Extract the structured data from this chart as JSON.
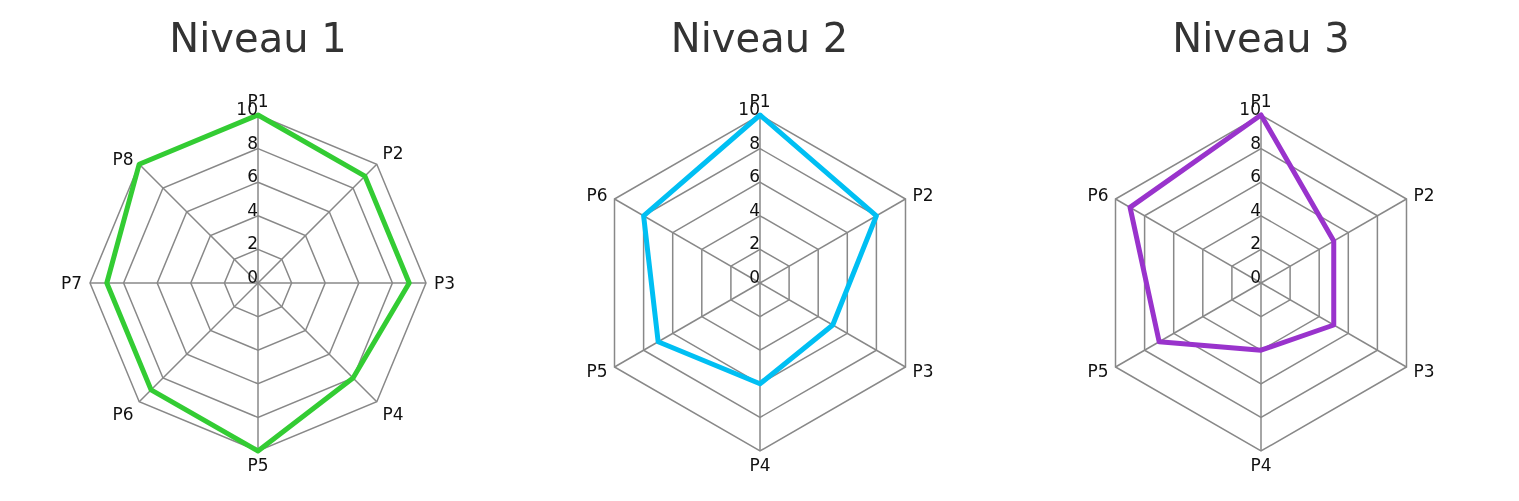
{
  "chart_data": [
    {
      "type": "radar",
      "title": "Niveau 1",
      "categories": [
        "P1",
        "P2",
        "P3",
        "P4",
        "P5",
        "P6",
        "P7",
        "P8"
      ],
      "series": [
        {
          "color": "#33cc33",
          "values": [
            10,
            9,
            9,
            8,
            10,
            9,
            9,
            10
          ]
        }
      ],
      "ylim": [
        0,
        10
      ],
      "yticks": [
        0,
        2,
        4,
        6,
        8,
        10
      ],
      "grid": true,
      "marker": "none"
    },
    {
      "type": "radar",
      "title": "Niveau 2",
      "categories": [
        "P1",
        "P2",
        "P3",
        "P4",
        "P5",
        "P6"
      ],
      "series": [
        {
          "color": "#00bff3",
          "values": [
            10,
            8,
            5,
            6,
            7,
            8
          ]
        }
      ],
      "ylim": [
        0,
        10
      ],
      "yticks": [
        0,
        2,
        4,
        6,
        8,
        10
      ],
      "grid": true,
      "marker": "none"
    },
    {
      "type": "radar",
      "title": "Niveau 3",
      "categories": [
        "P1",
        "P2",
        "P3",
        "P4",
        "P5",
        "P6"
      ],
      "series": [
        {
          "color": "#9933cc",
          "values": [
            10,
            5,
            5,
            4,
            7,
            9
          ]
        }
      ],
      "ylim": [
        0,
        10
      ],
      "yticks": [
        0,
        2,
        4,
        6,
        8,
        10
      ],
      "grid": true,
      "marker": "none"
    }
  ]
}
